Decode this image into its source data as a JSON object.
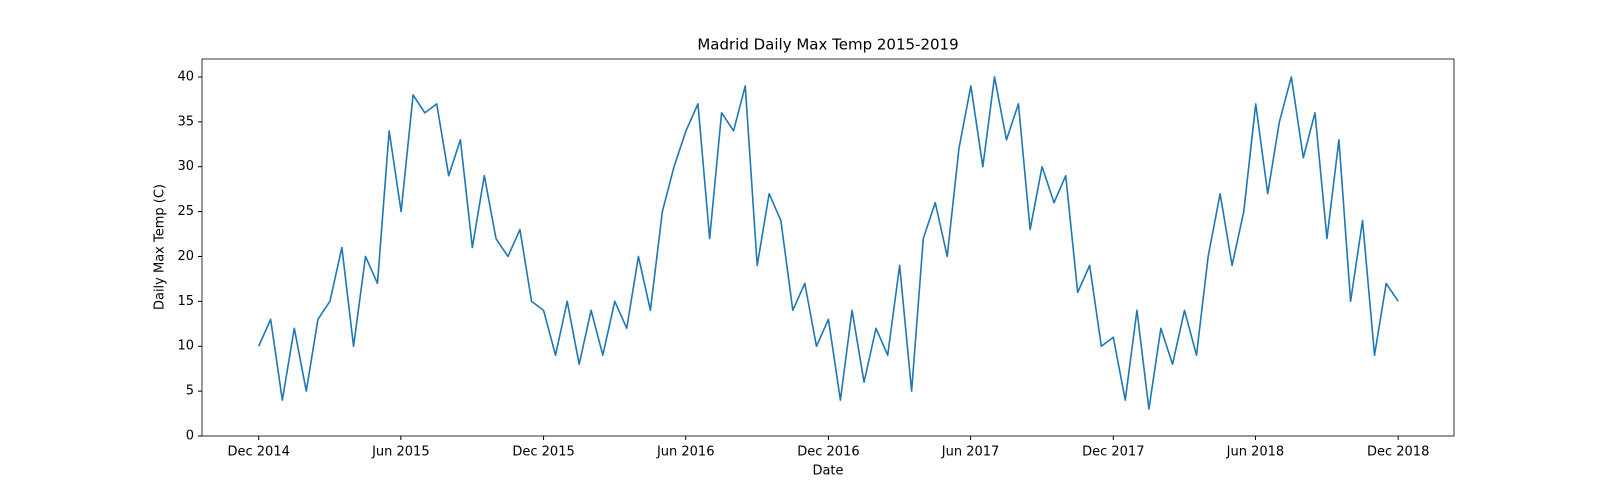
{
  "chart_data": {
    "type": "line",
    "title": "Madrid Daily Max Temp 2015-2019",
    "x_label": "Date",
    "y_label": "Daily Max Temp (C)",
    "x": [
      2014.915,
      2014.957,
      2014.998,
      2015.04,
      2015.082,
      2015.123,
      2015.165,
      2015.207,
      2015.248,
      2015.29,
      2015.332,
      2015.373,
      2015.415,
      2015.457,
      2015.498,
      2015.54,
      2015.582,
      2015.623,
      2015.665,
      2015.707,
      2015.748,
      2015.79,
      2015.832,
      2015.873,
      2015.915,
      2015.957,
      2015.998,
      2016.04,
      2016.082,
      2016.123,
      2016.165,
      2016.207,
      2016.248,
      2016.29,
      2016.332,
      2016.373,
      2016.415,
      2016.457,
      2016.498,
      2016.54,
      2016.582,
      2016.623,
      2016.665,
      2016.707,
      2016.748,
      2016.79,
      2016.832,
      2016.873,
      2016.915,
      2016.957,
      2016.998,
      2017.04,
      2017.082,
      2017.123,
      2017.165,
      2017.207,
      2017.248,
      2017.29,
      2017.332,
      2017.373,
      2017.415,
      2017.457,
      2017.498,
      2017.54,
      2017.582,
      2017.623,
      2017.665,
      2017.707,
      2017.748,
      2017.79,
      2017.832,
      2017.873,
      2017.915,
      2017.957,
      2017.998,
      2018.04,
      2018.082,
      2018.123,
      2018.165,
      2018.207,
      2018.248,
      2018.29,
      2018.332,
      2018.373,
      2018.415,
      2018.457,
      2018.498,
      2018.54,
      2018.582,
      2018.623,
      2018.665,
      2018.707,
      2018.748,
      2018.79,
      2018.832,
      2018.873,
      2018.915
    ],
    "series": [
      {
        "color": "#1f77b4",
        "values": [
          10,
          13,
          4,
          12,
          5,
          13,
          15,
          21,
          10,
          20,
          17,
          34,
          25,
          38,
          36,
          37,
          29,
          33,
          21,
          29,
          22,
          20,
          23,
          15,
          14,
          9,
          15,
          8,
          14,
          9,
          15,
          12,
          20,
          14,
          25,
          30,
          34,
          37,
          22,
          36,
          34,
          39,
          19,
          27,
          24,
          14,
          17,
          10,
          13,
          4,
          14,
          6,
          12,
          9,
          19,
          5,
          22,
          26,
          20,
          32,
          39,
          30,
          40,
          33,
          37,
          23,
          30,
          26,
          29,
          16,
          19,
          10,
          11,
          4,
          14,
          3,
          12,
          8,
          14,
          9,
          20,
          27,
          19,
          25,
          37,
          27,
          35,
          40,
          31,
          36,
          22,
          33,
          15,
          24,
          9,
          17,
          15
        ]
      }
    ],
    "xlim": [
      2014.716,
      2019.111
    ],
    "xticks": [
      {
        "value": 2014.915,
        "label": "Dec 2014"
      },
      {
        "value": 2015.414,
        "label": "Jun 2015"
      },
      {
        "value": 2015.915,
        "label": "Dec 2015"
      },
      {
        "value": 2016.414,
        "label": "Jun 2016"
      },
      {
        "value": 2016.915,
        "label": "Dec 2016"
      },
      {
        "value": 2017.414,
        "label": "Jun 2017"
      },
      {
        "value": 2017.915,
        "label": "Dec 2017"
      },
      {
        "value": 2018.414,
        "label": "Jun 2018"
      },
      {
        "value": 2018.915,
        "label": "Dec 2018"
      }
    ],
    "ylim": [
      0,
      42
    ],
    "yticks": [
      0,
      5,
      10,
      15,
      20,
      25,
      30,
      35,
      40
    ]
  }
}
